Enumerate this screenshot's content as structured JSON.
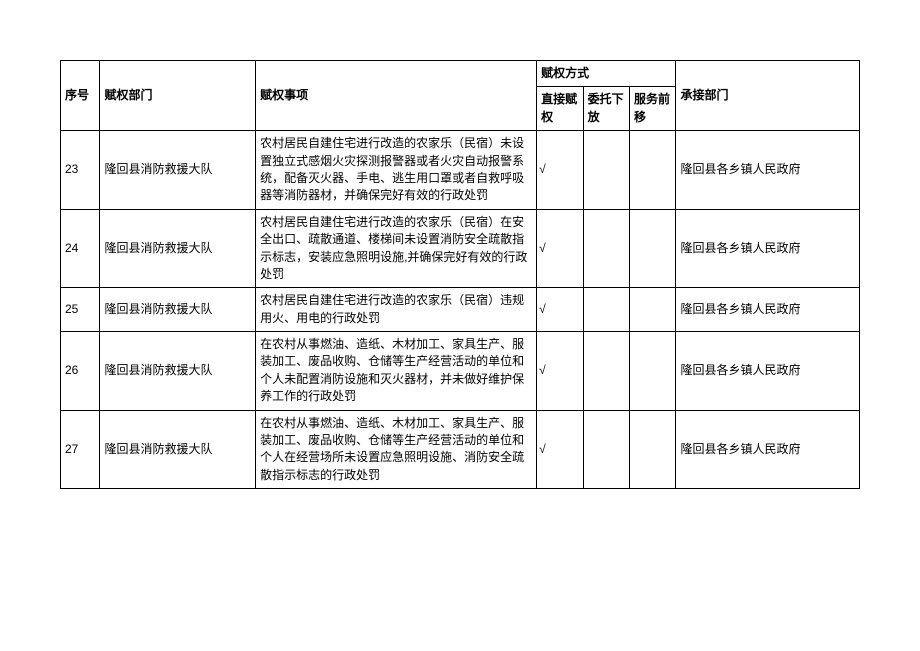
{
  "headers": {
    "seq": "序号",
    "dept": "赋权部门",
    "item": "赋权事项",
    "method_group": "赋权方式",
    "m1": "直接赋权",
    "m2": "委托下放",
    "m3": "服务前移",
    "recv": "承接部门"
  },
  "checkmark": "√",
  "rows": {
    "0": {
      "seq": "23",
      "dept": "隆回县消防救援大队",
      "item": "农村居民自建住宅进行改造的农家乐（民宿）未设置独立式感烟火灾探测报警器或者火灾自动报警系统，配备灭火器、手电、逃生用口罩或者自救呼吸器等消防器材，并确保完好有效的行政处罚",
      "m1": "√",
      "m2": "",
      "m3": "",
      "recv": "隆回县各乡镇人民政府"
    },
    "1": {
      "seq": "24",
      "dept": "隆回县消防救援大队",
      "item": "农村居民自建住宅进行改造的农家乐（民宿）在安全出口、疏散通道、楼梯间未设置消防安全疏散指示标志，安装应急照明设施,并确保完好有效的行政处罚",
      "m1": "√",
      "m2": "",
      "m3": "",
      "recv": "隆回县各乡镇人民政府"
    },
    "2": {
      "seq": "25",
      "dept": "隆回县消防救援大队",
      "item": "农村居民自建住宅进行改造的农家乐（民宿）违规用火、用电的行政处罚",
      "m1": "√",
      "m2": "",
      "m3": "",
      "recv": "隆回县各乡镇人民政府"
    },
    "3": {
      "seq": "26",
      "dept": "隆回县消防救援大队",
      "item": "在农村从事燃油、造纸、木材加工、家具生产、服装加工、废品收购、仓储等生产经营活动的单位和个人未配置消防设施和灭火器材，并未做好维护保养工作的行政处罚",
      "m1": "√",
      "m2": "",
      "m3": "",
      "recv": "隆回县各乡镇人民政府"
    },
    "4": {
      "seq": "27",
      "dept": "隆回县消防救援大队",
      "item": "在农村从事燃油、造纸、木材加工、家具生产、服装加工、废品收购、仓储等生产经营活动的单位和个人在经营场所未设置应急照明设施、消防安全疏散指示标志的行政处罚",
      "m1": "√",
      "m2": "",
      "m3": "",
      "recv": "隆回县各乡镇人民政府"
    }
  }
}
